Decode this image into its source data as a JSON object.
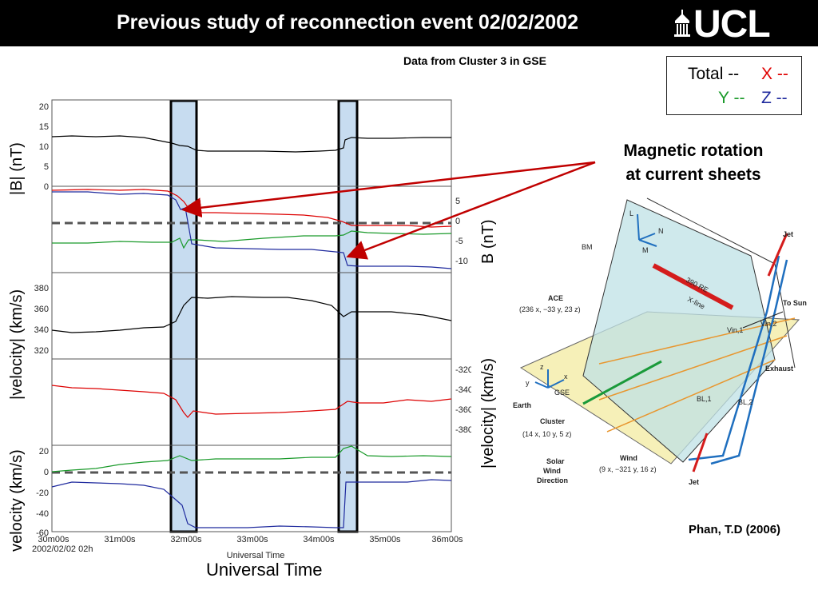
{
  "slide": {
    "title": "Previous study of reconnection event 02/02/2002",
    "logo_text": "UCL",
    "subtitle": "Data from Cluster 3 in GSE",
    "legend": {
      "total": "Total --",
      "x": "X --",
      "y": "Y --",
      "z": "Z --"
    },
    "legend_colors": {
      "total": "#000000",
      "x": "#e00000",
      "y": "#1a9a2a",
      "z": "#1f2a9e"
    },
    "ylabels": {
      "b_mag": "|B| (nT)",
      "b_comp": "B (nT)",
      "vel_mag": "|velocity| (km/s)",
      "vel_comp_right": "|velocity| (km/s)",
      "vel_comp_left": "velocity (km/s)"
    },
    "annotation_line1": "Magnetic rotation",
    "annotation_line2": "at current sheets",
    "credit": "Phan, T.D (2006)",
    "xlabel": "Universal Time",
    "plot_xticks": [
      "30m00s",
      "31m00s",
      "32m00s",
      "33m00s",
      "34m00s",
      "35m00s",
      "36m00s"
    ],
    "plot_date": "2002/02/02 02h",
    "plot_small_xlabel": "Universal Time",
    "panel_ticks": {
      "p1": [
        "20",
        "15",
        "10",
        "5",
        "0"
      ],
      "p2": [
        "5",
        "0",
        "-5",
        "-10"
      ],
      "p3": [
        "380",
        "360",
        "340",
        "320"
      ],
      "p4": [
        "-320",
        "-340",
        "-360",
        "-380"
      ],
      "p5": [
        "20",
        "0",
        "-20",
        "-40",
        "-60"
      ]
    },
    "diagram_labels": {
      "L": "L",
      "N": "N",
      "M": "M",
      "BM": "BM",
      "jet_top": "Jet",
      "jet_bottom": "Jet",
      "re": "390 RE",
      "xline": "X-line",
      "to_sun": "To Sun",
      "exhaust": "Exhaust",
      "ace": "ACE",
      "ace_coords": "(236 x, −33 y, 23 z)",
      "vin1": "Vin,1",
      "vin2": "Vin,2",
      "bl1": "BL,1",
      "bl2": "BL,2",
      "earth": "Earth",
      "gse": "GSE",
      "z": "z",
      "x": "x",
      "y": "y",
      "cluster": "Cluster",
      "cluster_coords": "(14 x, 10 y, 5 z)",
      "solar": "Solar",
      "wind_word": "Wind",
      "direction": "Direction",
      "wind": "Wind",
      "wind_coords": "(9 x, −321 y, 16 z)"
    }
  }
}
